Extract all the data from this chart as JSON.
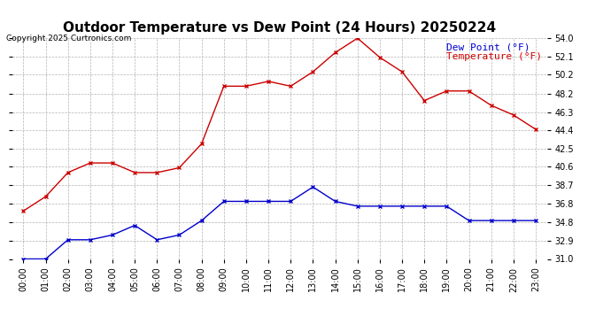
{
  "title": "Outdoor Temperature vs Dew Point (24 Hours) 20250224",
  "copyright": "Copyright 2025 Curtronics.com",
  "legend_dew": "Dew Point (°F)",
  "legend_temp": "Temperature (°F)",
  "hours": [
    "00:00",
    "01:00",
    "02:00",
    "03:00",
    "04:00",
    "05:00",
    "06:00",
    "07:00",
    "08:00",
    "09:00",
    "10:00",
    "11:00",
    "12:00",
    "13:00",
    "14:00",
    "15:00",
    "16:00",
    "17:00",
    "18:00",
    "19:00",
    "20:00",
    "21:00",
    "22:00",
    "23:00"
  ],
  "temperature": [
    36.0,
    37.5,
    40.0,
    41.0,
    41.0,
    40.0,
    40.0,
    40.5,
    43.0,
    49.0,
    49.0,
    49.5,
    49.0,
    50.5,
    52.5,
    54.0,
    52.0,
    50.5,
    47.5,
    48.5,
    48.5,
    47.0,
    46.0,
    44.5
  ],
  "dew_point": [
    31.0,
    31.0,
    33.0,
    33.0,
    33.5,
    34.5,
    33.0,
    33.5,
    35.0,
    37.0,
    37.0,
    37.0,
    37.0,
    38.5,
    37.0,
    36.5,
    36.5,
    36.5,
    36.5,
    36.5,
    35.0,
    35.0,
    35.0,
    35.0
  ],
  "temp_color": "#cc0000",
  "dew_color": "#0000cc",
  "marker": "x",
  "ylim_min": 31.0,
  "ylim_max": 54.0,
  "yticks": [
    31.0,
    32.9,
    34.8,
    36.8,
    38.7,
    40.6,
    42.5,
    44.4,
    46.3,
    48.2,
    50.2,
    52.1,
    54.0
  ],
  "grid_color": "#aaaaaa",
  "bg_color": "#ffffff",
  "title_fontsize": 11,
  "tick_fontsize": 7,
  "copyright_fontsize": 6.5,
  "legend_fontsize": 8
}
